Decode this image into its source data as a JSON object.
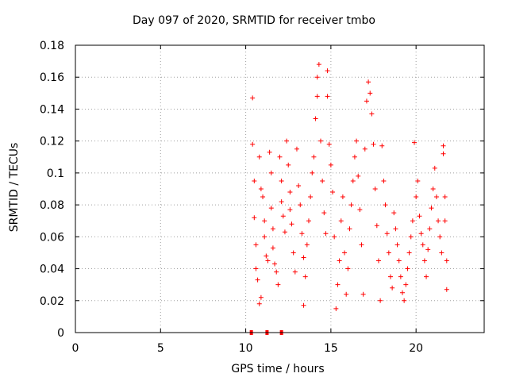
{
  "chart_data": {
    "type": "scatter",
    "title": "Day 097 of 2020, SRMTID for receiver tmbo",
    "xlabel": "GPS time / hours",
    "ylabel": "SRMTID / TECUs",
    "xlim": [
      0,
      24
    ],
    "ylim": [
      0,
      0.18
    ],
    "xticks": [
      "0",
      "5",
      "10",
      "15",
      "20"
    ],
    "xtick_values": [
      0,
      5,
      10,
      15,
      20
    ],
    "yticks": [
      "0",
      "0.02",
      "0.04",
      "0.06",
      "0.08",
      "0.1",
      "0.12",
      "0.14",
      "0.16",
      "0.18"
    ],
    "ytick_values": [
      0,
      0.02,
      0.04,
      0.06,
      0.08,
      0.1,
      0.12,
      0.14,
      0.16,
      0.18
    ],
    "grid": true,
    "marker": "+",
    "color": "#ff0000",
    "series": [
      {
        "name": "SRMTID",
        "points": [
          [
            10.4,
            0.147
          ],
          [
            10.4,
            0.118
          ],
          [
            10.5,
            0.095
          ],
          [
            10.5,
            0.072
          ],
          [
            10.6,
            0.055
          ],
          [
            10.6,
            0.04
          ],
          [
            10.7,
            0.033
          ],
          [
            10.8,
            0.018
          ],
          [
            10.9,
            0.022
          ],
          [
            10.8,
            0.11
          ],
          [
            10.9,
            0.09
          ],
          [
            11.0,
            0.085
          ],
          [
            11.1,
            0.07
          ],
          [
            11.1,
            0.06
          ],
          [
            11.2,
            0.048
          ],
          [
            11.3,
            0.045
          ],
          [
            11.4,
            0.113
          ],
          [
            11.5,
            0.1
          ],
          [
            11.5,
            0.078
          ],
          [
            11.6,
            0.065
          ],
          [
            11.6,
            0.053
          ],
          [
            11.7,
            0.043
          ],
          [
            11.8,
            0.038
          ],
          [
            11.9,
            0.03
          ],
          [
            12.0,
            0.11
          ],
          [
            12.1,
            0.095
          ],
          [
            12.1,
            0.082
          ],
          [
            12.2,
            0.073
          ],
          [
            12.3,
            0.063
          ],
          [
            12.4,
            0.12
          ],
          [
            12.5,
            0.105
          ],
          [
            12.6,
            0.088
          ],
          [
            12.6,
            0.077
          ],
          [
            12.7,
            0.068
          ],
          [
            12.8,
            0.05
          ],
          [
            12.9,
            0.038
          ],
          [
            13.0,
            0.115
          ],
          [
            13.1,
            0.092
          ],
          [
            13.2,
            0.08
          ],
          [
            13.3,
            0.062
          ],
          [
            13.4,
            0.047
          ],
          [
            13.4,
            0.017
          ],
          [
            13.5,
            0.035
          ],
          [
            13.6,
            0.055
          ],
          [
            13.7,
            0.07
          ],
          [
            13.8,
            0.085
          ],
          [
            13.9,
            0.1
          ],
          [
            14.0,
            0.11
          ],
          [
            14.1,
            0.134
          ],
          [
            14.2,
            0.148
          ],
          [
            14.2,
            0.16
          ],
          [
            14.3,
            0.168
          ],
          [
            14.4,
            0.12
          ],
          [
            14.5,
            0.095
          ],
          [
            14.6,
            0.075
          ],
          [
            14.7,
            0.062
          ],
          [
            14.8,
            0.148
          ],
          [
            14.8,
            0.164
          ],
          [
            14.9,
            0.118
          ],
          [
            15.0,
            0.105
          ],
          [
            15.1,
            0.088
          ],
          [
            15.2,
            0.06
          ],
          [
            15.3,
            0.015
          ],
          [
            15.4,
            0.03
          ],
          [
            15.5,
            0.045
          ],
          [
            15.6,
            0.07
          ],
          [
            15.7,
            0.085
          ],
          [
            15.8,
            0.05
          ],
          [
            15.9,
            0.024
          ],
          [
            16.0,
            0.04
          ],
          [
            16.1,
            0.065
          ],
          [
            16.2,
            0.08
          ],
          [
            16.3,
            0.095
          ],
          [
            16.4,
            0.11
          ],
          [
            16.5,
            0.12
          ],
          [
            16.6,
            0.098
          ],
          [
            16.7,
            0.077
          ],
          [
            16.8,
            0.055
          ],
          [
            16.9,
            0.024
          ],
          [
            17.0,
            0.115
          ],
          [
            17.1,
            0.145
          ],
          [
            17.2,
            0.157
          ],
          [
            17.3,
            0.15
          ],
          [
            17.4,
            0.137
          ],
          [
            17.5,
            0.118
          ],
          [
            17.6,
            0.09
          ],
          [
            17.7,
            0.067
          ],
          [
            17.8,
            0.045
          ],
          [
            17.9,
            0.02
          ],
          [
            18.0,
            0.117
          ],
          [
            18.1,
            0.095
          ],
          [
            18.2,
            0.08
          ],
          [
            18.3,
            0.062
          ],
          [
            18.4,
            0.05
          ],
          [
            18.5,
            0.035
          ],
          [
            18.6,
            0.028
          ],
          [
            18.7,
            0.075
          ],
          [
            18.8,
            0.065
          ],
          [
            18.9,
            0.055
          ],
          [
            19.0,
            0.045
          ],
          [
            19.1,
            0.035
          ],
          [
            19.2,
            0.025
          ],
          [
            19.3,
            0.02
          ],
          [
            19.4,
            0.03
          ],
          [
            19.5,
            0.04
          ],
          [
            19.6,
            0.05
          ],
          [
            19.7,
            0.06
          ],
          [
            19.8,
            0.07
          ],
          [
            19.9,
            0.119
          ],
          [
            20.0,
            0.085
          ],
          [
            20.1,
            0.095
          ],
          [
            20.2,
            0.073
          ],
          [
            20.3,
            0.062
          ],
          [
            20.4,
            0.055
          ],
          [
            20.5,
            0.045
          ],
          [
            20.6,
            0.035
          ],
          [
            20.7,
            0.052
          ],
          [
            20.8,
            0.065
          ],
          [
            20.9,
            0.078
          ],
          [
            21.0,
            0.09
          ],
          [
            21.1,
            0.103
          ],
          [
            21.2,
            0.085
          ],
          [
            21.3,
            0.07
          ],
          [
            21.4,
            0.06
          ],
          [
            21.5,
            0.05
          ],
          [
            21.6,
            0.117
          ],
          [
            21.6,
            0.112
          ],
          [
            21.7,
            0.085
          ],
          [
            21.7,
            0.07
          ],
          [
            21.8,
            0.045
          ],
          [
            21.8,
            0.027
          ]
        ],
        "zero_markers_x": [
          10.33,
          11.25,
          12.1
        ]
      }
    ]
  }
}
